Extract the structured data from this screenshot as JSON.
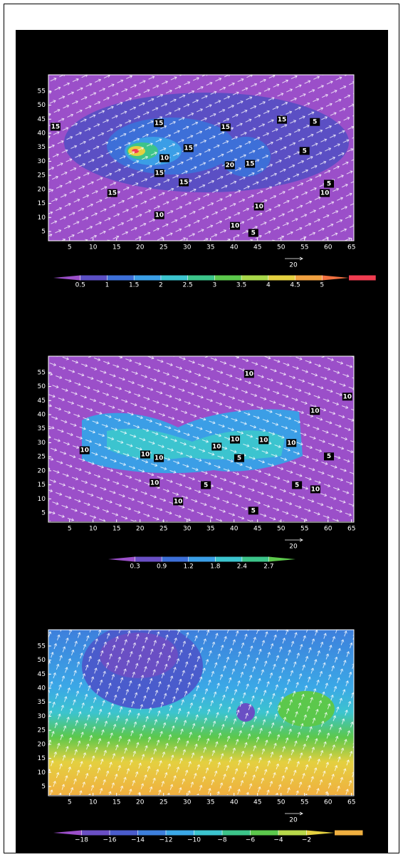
{
  "chart_data": [
    {
      "type": "contour",
      "xlim": [
        0.5,
        65.5
      ],
      "ylim": [
        1.7,
        60.8
      ],
      "xticks": [
        5,
        10,
        15,
        20,
        25,
        30,
        35,
        40,
        45,
        50,
        55,
        60,
        65
      ],
      "yticks": [
        5,
        10,
        15,
        20,
        25,
        30,
        35,
        40,
        45,
        50,
        55
      ],
      "contour_labels": {
        "x": [
          2.0,
          24,
          38.2,
          50.2,
          57.2,
          30.3,
          25.2,
          55,
          39.1,
          43.4,
          24.1,
          29.3,
          60.2,
          59.3,
          14.1,
          45.3,
          24.1,
          40.2,
          44.1
        ],
        "y": [
          42.3,
          43.6,
          42.1,
          44.8,
          44,
          34.7,
          31.1,
          33.7,
          28.6,
          29.1,
          25.8,
          22.5,
          22,
          18.7,
          18.7,
          13.9,
          10.8,
          7.0,
          4.5
        ],
        "values": [
          15,
          15,
          15,
          15,
          5,
          15,
          10,
          5,
          20,
          15,
          15,
          15,
          5,
          10,
          15,
          10,
          10,
          10,
          5
        ]
      },
      "colorbar": {
        "levels": [
          0.5,
          1,
          1.5,
          2,
          2.5,
          3,
          3.5,
          4,
          4.5,
          5
        ],
        "colors": [
          "#9b4fc9",
          "#5b4fc4",
          "#3d6fd8",
          "#3b9ee6",
          "#3cc4cf",
          "#3cc48a",
          "#5cc84c",
          "#a8d84a",
          "#e4d040",
          "#f0a040",
          "#f07040",
          "#f03c50"
        ]
      },
      "vector_reference": 20
    },
    {
      "type": "contour",
      "xlim": [
        0.5,
        65.5
      ],
      "ylim": [
        1.7,
        60.8
      ],
      "xticks": [
        5,
        10,
        15,
        20,
        25,
        30,
        35,
        40,
        45,
        50,
        55,
        60,
        65
      ],
      "yticks": [
        5,
        10,
        15,
        20,
        25,
        30,
        35,
        40,
        45,
        50,
        55
      ],
      "contour_labels": {
        "x": [
          43.2,
          64.1,
          57.2,
          8.2,
          40.2,
          46.3,
          52.2,
          36.3,
          21.1,
          24.0,
          41.1,
          60.2,
          53.4,
          57.3,
          23.1,
          34,
          28.1,
          44.1
        ],
        "y": [
          54.5,
          46.4,
          41.3,
          27.3,
          31.1,
          30.9,
          29.9,
          28.6,
          25.8,
          24.5,
          24.5,
          25.1,
          14.9,
          13.4,
          15.7,
          14.9,
          9.1,
          5.8
        ],
        "values": [
          10,
          10,
          10,
          10,
          10,
          10,
          10,
          10,
          10,
          10,
          5,
          5,
          5,
          10,
          10,
          5,
          10,
          5
        ]
      },
      "colorbar": {
        "levels": [
          0.3,
          0.9,
          1.2,
          1.8,
          2.4,
          2.7
        ],
        "colors": [
          "#9b4fc9",
          "#6a4fc4",
          "#3d6fd8",
          "#3b9ee6",
          "#3cc4cf",
          "#3cc48a",
          "#5cc84c"
        ]
      },
      "vector_reference": 20
    },
    {
      "type": "contour",
      "xlim": [
        0.5,
        65.5
      ],
      "ylim": [
        1.7,
        60.8
      ],
      "xticks": [
        5,
        10,
        15,
        20,
        25,
        30,
        35,
        40,
        45,
        50,
        55,
        60,
        65
      ],
      "yticks": [
        5,
        10,
        15,
        20,
        25,
        30,
        35,
        40,
        45,
        50,
        55
      ],
      "contour_labels": {
        "x": [],
        "y": [],
        "values": []
      },
      "colorbar": {
        "levels": [
          {
            "value": -18,
            "label": "−18"
          },
          {
            "value": -16,
            "label": "−16"
          },
          {
            "value": -14,
            "label": "−14"
          },
          {
            "value": -12,
            "label": "−12"
          },
          {
            "value": -10,
            "label": "−10"
          },
          {
            "value": -8,
            "label": "−8"
          },
          {
            "value": -6,
            "label": "−6"
          },
          {
            "value": -4,
            "label": "−4"
          },
          {
            "value": -2,
            "label": "−2"
          }
        ],
        "colors": [
          "#9b4fc9",
          "#6a4fc4",
          "#4a5ccc",
          "#3d7fdc",
          "#3ba8e6",
          "#3cc4cf",
          "#3cc48a",
          "#5cc84c",
          "#b8d84a",
          "#e4d040",
          "#f0b040"
        ]
      },
      "vector_reference": 20
    }
  ]
}
